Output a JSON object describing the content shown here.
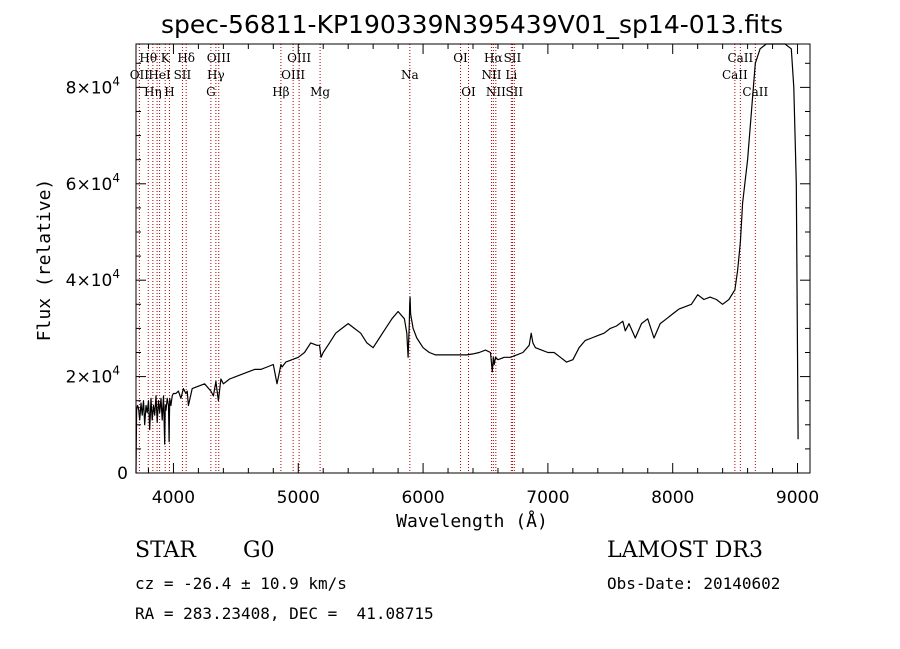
{
  "chart_data": {
    "type": "line",
    "title": "spec-56811-KP190339N395439V01_sp14-013.fits",
    "xlabel": "Wavelength (Å)",
    "ylabel": "Flux (relative)",
    "xlim": [
      3700,
      9100
    ],
    "ylim": [
      0,
      89000
    ],
    "xticks": [
      4000,
      5000,
      6000,
      7000,
      8000,
      9000
    ],
    "yticks": [
      {
        "value": 0,
        "mantissa": "0",
        "exp": ""
      },
      {
        "value": 20000,
        "mantissa": "2×10",
        "exp": "4"
      },
      {
        "value": 40000,
        "mantissa": "4×10",
        "exp": "4"
      },
      {
        "value": 60000,
        "mantissa": "6×10",
        "exp": "4"
      },
      {
        "value": 80000,
        "mantissa": "8×10",
        "exp": "4"
      }
    ],
    "series": [
      {
        "name": "flux",
        "x": [
          3700,
          3705,
          3712,
          3720,
          3730,
          3740,
          3750,
          3760,
          3770,
          3780,
          3790,
          3800,
          3810,
          3820,
          3830,
          3840,
          3850,
          3860,
          3870,
          3880,
          3890,
          3900,
          3910,
          3920,
          3930,
          3935,
          3940,
          3950,
          3960,
          3965,
          3970,
          3980,
          3990,
          4000,
          4020,
          4040,
          4060,
          4080,
          4100,
          4110,
          4120,
          4150,
          4200,
          4250,
          4300,
          4320,
          4340,
          4360,
          4380,
          4400,
          4450,
          4500,
          4550,
          4600,
          4650,
          4700,
          4750,
          4800,
          4830,
          4850,
          4861,
          4870,
          4900,
          4950,
          5000,
          5050,
          5100,
          5150,
          5170,
          5183,
          5200,
          5250,
          5300,
          5350,
          5400,
          5450,
          5500,
          5550,
          5600,
          5650,
          5700,
          5750,
          5800,
          5850,
          5870,
          5880,
          5890,
          5893,
          5896,
          5900,
          5920,
          5950,
          6000,
          6050,
          6100,
          6150,
          6200,
          6250,
          6300,
          6350,
          6400,
          6450,
          6500,
          6540,
          6555,
          6563,
          6570,
          6580,
          6600,
          6650,
          6700,
          6750,
          6800,
          6850,
          6866,
          6880,
          6900,
          6950,
          7000,
          7050,
          7100,
          7150,
          7200,
          7250,
          7300,
          7350,
          7400,
          7450,
          7500,
          7550,
          7600,
          7620,
          7650,
          7700,
          7750,
          7800,
          7850,
          7900,
          7950,
          8000,
          8050,
          8100,
          8150,
          8200,
          8250,
          8300,
          8350,
          8400,
          8450,
          8498,
          8520,
          8542,
          8560,
          8600,
          8640,
          8662,
          8700,
          8750,
          8800,
          8850,
          8900,
          8950,
          8970,
          8990,
          9000,
          9005
        ],
        "y": [
          0,
          13000,
          14000,
          13500,
          11000,
          14500,
          12000,
          15000,
          10000,
          14000,
          12500,
          15000,
          9000,
          15500,
          11000,
          14000,
          12000,
          16000,
          10500,
          15000,
          12500,
          15500,
          11000,
          16000,
          6000,
          14000,
          13000,
          15500,
          14000,
          6500,
          15500,
          14000,
          16000,
          16500,
          16500,
          17000,
          15500,
          17500,
          16500,
          17000,
          14000,
          17500,
          18000,
          18500,
          17000,
          16000,
          19000,
          15000,
          19500,
          18500,
          19500,
          20000,
          20500,
          21000,
          21500,
          21500,
          22000,
          22500,
          18500,
          21000,
          22500,
          22000,
          23000,
          23500,
          24000,
          25000,
          27000,
          26500,
          26500,
          24000,
          25000,
          27000,
          29000,
          30000,
          31000,
          30000,
          29000,
          27000,
          26000,
          28000,
          30000,
          32000,
          33500,
          32000,
          29000,
          24000,
          31000,
          35000,
          36500,
          33000,
          30000,
          28000,
          26000,
          25000,
          24500,
          24500,
          24500,
          24500,
          24500,
          24500,
          24700,
          25000,
          25500,
          25000,
          21000,
          24000,
          22500,
          24000,
          23500,
          24000,
          24000,
          24500,
          25000,
          26500,
          29000,
          27000,
          26000,
          25500,
          25000,
          25000,
          24000,
          23000,
          23500,
          26000,
          27500,
          28000,
          28500,
          29000,
          30000,
          30500,
          31500,
          29500,
          31000,
          28000,
          31000,
          32000,
          28000,
          31000,
          32000,
          33000,
          34000,
          34500,
          35000,
          37000,
          36000,
          36500,
          36000,
          35000,
          36000,
          38000,
          42000,
          48000,
          56000,
          65000,
          78000,
          85000,
          88000,
          89000,
          89000,
          89000,
          89000,
          88000,
          80000,
          60000,
          25000,
          7000
        ]
      }
    ],
    "spectral_lines": [
      {
        "wavelength": 3727,
        "label": "OII",
        "row": 2
      },
      {
        "wavelength": 3798,
        "label": "Hθ",
        "row": 1
      },
      {
        "wavelength": 3835,
        "label": "Hη",
        "row": 3
      },
      {
        "wavelength": 3869,
        "label": "",
        "row": 0
      },
      {
        "wavelength": 3889,
        "label": "HeI",
        "row": 2
      },
      {
        "wavelength": 3934,
        "label": "K",
        "row": 1
      },
      {
        "wavelength": 3968,
        "label": "H",
        "row": 3
      },
      {
        "wavelength": 4072,
        "label": "SII",
        "row": 2
      },
      {
        "wavelength": 4102,
        "label": "Hδ",
        "row": 1
      },
      {
        "wavelength": 4300,
        "label": "G",
        "row": 3
      },
      {
        "wavelength": 4340,
        "label": "Hγ",
        "row": 2
      },
      {
        "wavelength": 4363,
        "label": "OIII",
        "row": 1
      },
      {
        "wavelength": 4861,
        "label": "Hβ",
        "row": 3
      },
      {
        "wavelength": 4959,
        "label": "OIII",
        "row": 2
      },
      {
        "wavelength": 5007,
        "label": "OIII",
        "row": 1
      },
      {
        "wavelength": 5175,
        "label": "Mg",
        "row": 3
      },
      {
        "wavelength": 5894,
        "label": "Na",
        "row": 2
      },
      {
        "wavelength": 6300,
        "label": "OI",
        "row": 1
      },
      {
        "wavelength": 6364,
        "label": "OI",
        "row": 3
      },
      {
        "wavelength": 6548,
        "label": "NII",
        "row": 2
      },
      {
        "wavelength": 6563,
        "label": "Hα",
        "row": 1
      },
      {
        "wavelength": 6583,
        "label": "NII",
        "row": 3
      },
      {
        "wavelength": 6707,
        "label": "Li",
        "row": 2
      },
      {
        "wavelength": 6716,
        "label": "SII",
        "row": 1
      },
      {
        "wavelength": 6731,
        "label": "SII",
        "row": 3
      },
      {
        "wavelength": 8498,
        "label": "CaII",
        "row": 2
      },
      {
        "wavelength": 8542,
        "label": "CaII",
        "row": 1
      },
      {
        "wavelength": 8662,
        "label": "CaII",
        "row": 3
      }
    ]
  },
  "info": {
    "class": "STAR",
    "subclass": "G0",
    "survey": "LAMOST DR3",
    "cz": "cz = -26.4 ± 10.9 km/s",
    "obs_date": "Obs-Date: 20140602",
    "coords": "RA = 283.23408, DEC =  41.08715"
  },
  "colors": {
    "line": "#000000",
    "marker": "#b00000",
    "background": "#ffffff"
  }
}
